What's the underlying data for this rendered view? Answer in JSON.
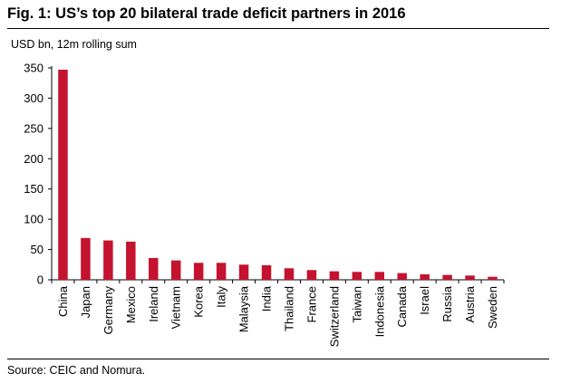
{
  "title": "Fig. 1: US’s top 20 bilateral trade deficit partners in 2016",
  "source": "Source: CEIC and Nomura.",
  "chart_data": {
    "type": "bar",
    "subtitle": "USD bn, 12m rolling sum",
    "categories": [
      "China",
      "Japan",
      "Germany",
      "Mexico",
      "Ireland",
      "Vietnam",
      "Korea",
      "Italy",
      "Malaysia",
      "India",
      "Thailand",
      "France",
      "Switzerland",
      "Taiwan",
      "Indonesia",
      "Canada",
      "Israel",
      "Russia",
      "Austria",
      "Sweden"
    ],
    "values": [
      347,
      69,
      65,
      63,
      36,
      32,
      28,
      28,
      25,
      24,
      19,
      16,
      14,
      13,
      13,
      11,
      9,
      8,
      7,
      5
    ],
    "ylim": [
      0,
      350
    ],
    "yticks": [
      0,
      50,
      100,
      150,
      200,
      250,
      300,
      350
    ],
    "bar_color": "#c4122f",
    "grid": false,
    "legend": "none"
  }
}
